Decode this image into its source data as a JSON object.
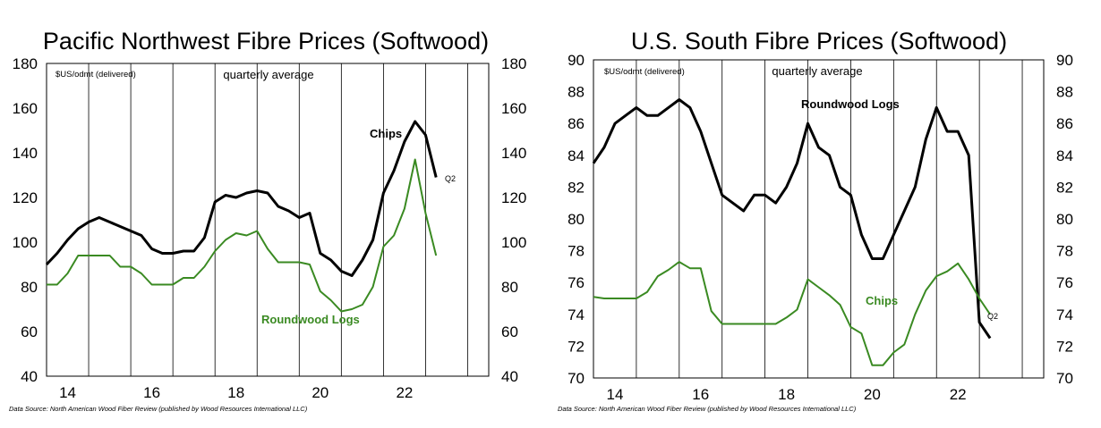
{
  "chart_data": [
    {
      "type": "line",
      "title": "Pacific Northwest Fibre Prices (Softwood)",
      "unit_note": "$US/odmt  (delivered)",
      "subtitle": "quarterly average",
      "source": "Data Source: North American Wood Fiber Review  (published by Wood Resources International LLC)",
      "ylim": [
        40,
        180
      ],
      "yticks": [
        40,
        60,
        80,
        100,
        120,
        140,
        160,
        180
      ],
      "xlim": [
        13.5,
        24
      ],
      "xticks": [
        14,
        16,
        18,
        20,
        22
      ],
      "grid": "vertical",
      "end_label": "Q2",
      "colors": {
        "chips": "#000000",
        "logs": "#3a8a22"
      },
      "series": [
        {
          "name": "Chips",
          "values": [
            [
              13.5,
              90
            ],
            [
              13.75,
              95
            ],
            [
              14.0,
              101
            ],
            [
              14.25,
              106
            ],
            [
              14.5,
              109
            ],
            [
              14.75,
              111
            ],
            [
              15.0,
              109
            ],
            [
              15.25,
              107
            ],
            [
              15.5,
              105
            ],
            [
              15.75,
              103
            ],
            [
              16.0,
              97
            ],
            [
              16.25,
              95
            ],
            [
              16.5,
              95
            ],
            [
              16.75,
              96
            ],
            [
              17.0,
              96
            ],
            [
              17.25,
              102
            ],
            [
              17.5,
              118
            ],
            [
              17.75,
              121
            ],
            [
              18.0,
              120
            ],
            [
              18.25,
              122
            ],
            [
              18.5,
              123
            ],
            [
              18.75,
              122
            ],
            [
              19.0,
              116
            ],
            [
              19.25,
              114
            ],
            [
              19.5,
              111
            ],
            [
              19.75,
              113
            ],
            [
              20.0,
              95
            ],
            [
              20.25,
              92
            ],
            [
              20.5,
              87
            ],
            [
              20.75,
              85
            ],
            [
              21.0,
              92
            ],
            [
              21.25,
              101
            ],
            [
              21.5,
              122
            ],
            [
              21.75,
              132
            ],
            [
              22.0,
              145
            ],
            [
              22.25,
              154
            ],
            [
              22.5,
              148
            ],
            [
              22.75,
              129
            ]
          ]
        },
        {
          "name": "Roundwood Logs",
          "values": [
            [
              13.5,
              81
            ],
            [
              13.75,
              81
            ],
            [
              14.0,
              86
            ],
            [
              14.25,
              94
            ],
            [
              14.5,
              94
            ],
            [
              14.75,
              94
            ],
            [
              15.0,
              94
            ],
            [
              15.25,
              89
            ],
            [
              15.5,
              89
            ],
            [
              15.75,
              86
            ],
            [
              16.0,
              81
            ],
            [
              16.25,
              81
            ],
            [
              16.5,
              81
            ],
            [
              16.75,
              84
            ],
            [
              17.0,
              84
            ],
            [
              17.25,
              89
            ],
            [
              17.5,
              96
            ],
            [
              17.75,
              101
            ],
            [
              18.0,
              104
            ],
            [
              18.25,
              103
            ],
            [
              18.5,
              105
            ],
            [
              18.75,
              97
            ],
            [
              19.0,
              91
            ],
            [
              19.25,
              91
            ],
            [
              19.5,
              91
            ],
            [
              19.75,
              90
            ],
            [
              20.0,
              78
            ],
            [
              20.25,
              74
            ],
            [
              20.5,
              69
            ],
            [
              20.75,
              70
            ],
            [
              21.0,
              72
            ],
            [
              21.25,
              80
            ],
            [
              21.5,
              98
            ],
            [
              21.75,
              103
            ],
            [
              22.0,
              115
            ],
            [
              22.25,
              137
            ],
            [
              22.5,
              113
            ],
            [
              22.75,
              94
            ]
          ]
        }
      ]
    },
    {
      "type": "line",
      "title": "U.S. South Fibre Prices (Softwood)",
      "unit_note": "$US/odmt  (delivered)",
      "subtitle": "quarterly average",
      "source": "Data Source: North American Wood Fiber Review  (published by Wood Resources International LLC)",
      "ylim": [
        70,
        90
      ],
      "yticks": [
        70,
        72,
        74,
        76,
        78,
        80,
        82,
        84,
        86,
        88,
        90
      ],
      "xlim": [
        13.5,
        24
      ],
      "xticks": [
        14,
        16,
        18,
        20,
        22
      ],
      "grid": "vertical",
      "end_label": "Q2",
      "colors": {
        "logs": "#000000",
        "chips": "#3a8a22"
      },
      "series": [
        {
          "name": "Roundwood Logs",
          "values": [
            [
              13.5,
              83.5
            ],
            [
              13.75,
              84.5
            ],
            [
              14.0,
              86.0
            ],
            [
              14.25,
              86.5
            ],
            [
              14.5,
              87.0
            ],
            [
              14.75,
              86.5
            ],
            [
              15.0,
              86.5
            ],
            [
              15.25,
              87.0
            ],
            [
              15.5,
              87.5
            ],
            [
              15.75,
              87.0
            ],
            [
              16.0,
              85.5
            ],
            [
              16.25,
              83.5
            ],
            [
              16.5,
              81.5
            ],
            [
              16.75,
              81.0
            ],
            [
              17.0,
              80.5
            ],
            [
              17.25,
              81.5
            ],
            [
              17.5,
              81.5
            ],
            [
              17.75,
              81.0
            ],
            [
              18.0,
              82.0
            ],
            [
              18.25,
              83.5
            ],
            [
              18.5,
              86.0
            ],
            [
              18.75,
              84.5
            ],
            [
              19.0,
              84.0
            ],
            [
              19.25,
              82.0
            ],
            [
              19.5,
              81.5
            ],
            [
              19.75,
              79.0
            ],
            [
              20.0,
              77.5
            ],
            [
              20.25,
              77.5
            ],
            [
              20.5,
              79.0
            ],
            [
              20.75,
              80.5
            ],
            [
              21.0,
              82.0
            ],
            [
              21.25,
              85.0
            ],
            [
              21.5,
              87.0
            ],
            [
              21.75,
              85.5
            ],
            [
              22.0,
              85.5
            ],
            [
              22.25,
              84.0
            ],
            [
              22.5,
              73.5
            ],
            [
              22.75,
              72.5
            ]
          ]
        },
        {
          "name": "Chips",
          "values": [
            [
              13.5,
              75.1
            ],
            [
              13.75,
              75.0
            ],
            [
              14.0,
              75.0
            ],
            [
              14.25,
              75.0
            ],
            [
              14.5,
              75.0
            ],
            [
              14.75,
              75.4
            ],
            [
              15.0,
              76.4
            ],
            [
              15.25,
              76.8
            ],
            [
              15.5,
              77.3
            ],
            [
              15.75,
              76.9
            ],
            [
              16.0,
              76.9
            ],
            [
              16.25,
              74.2
            ],
            [
              16.5,
              73.4
            ],
            [
              16.75,
              73.4
            ],
            [
              17.0,
              73.4
            ],
            [
              17.25,
              73.4
            ],
            [
              17.5,
              73.4
            ],
            [
              17.75,
              73.4
            ],
            [
              18.0,
              73.8
            ],
            [
              18.25,
              74.3
            ],
            [
              18.5,
              76.2
            ],
            [
              18.75,
              75.7
            ],
            [
              19.0,
              75.2
            ],
            [
              19.25,
              74.6
            ],
            [
              19.5,
              73.2
            ],
            [
              19.75,
              72.8
            ],
            [
              20.0,
              70.8
            ],
            [
              20.25,
              70.8
            ],
            [
              20.5,
              71.6
            ],
            [
              20.75,
              72.1
            ],
            [
              21.0,
              74.0
            ],
            [
              21.25,
              75.5
            ],
            [
              21.5,
              76.4
            ],
            [
              21.75,
              76.7
            ],
            [
              22.0,
              77.2
            ],
            [
              22.25,
              76.2
            ],
            [
              22.5,
              75.0
            ],
            [
              22.75,
              74.0
            ]
          ]
        }
      ]
    }
  ],
  "labels": {
    "left": {
      "chips": "Chips",
      "logs": "Roundwood Logs"
    },
    "right": {
      "logs": "Roundwood Logs",
      "chips": "Chips"
    }
  }
}
